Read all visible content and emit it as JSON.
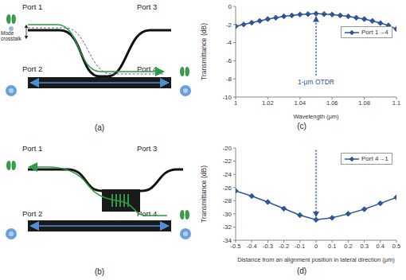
{
  "panel_labels": [
    "(a)",
    "(b)",
    "(c)",
    "(d)"
  ],
  "diagrams": [
    {
      "ports": [
        "Port 1",
        "Port 2",
        "Port 3",
        "Port 4"
      ],
      "annotation": "Mode crosstalk"
    },
    {
      "ports": [
        "Port 1",
        "Port 2",
        "Port 3",
        "Port 4"
      ]
    }
  ],
  "chart_data": [
    {
      "type": "line",
      "x_label": "Wavelength (μm)",
      "y_label": "Transmittance (dB)",
      "x": [
        1.0,
        1.005,
        1.01,
        1.015,
        1.02,
        1.025,
        1.03,
        1.035,
        1.04,
        1.045,
        1.05,
        1.055,
        1.06,
        1.065,
        1.07,
        1.075,
        1.08,
        1.085,
        1.09,
        1.095,
        1.1
      ],
      "series": [
        {
          "name": "Port 1→4",
          "color": "#2e5597",
          "marker": "diamond",
          "line_style": "solid",
          "values": [
            -2.2,
            -2.0,
            -1.8,
            -1.6,
            -1.4,
            -1.25,
            -1.1,
            -1.0,
            -0.9,
            -0.85,
            -0.8,
            -0.85,
            -0.9,
            -1.0,
            -1.1,
            -1.25,
            -1.4,
            -1.6,
            -1.85,
            -2.1,
            -2.5
          ]
        }
      ],
      "xlim": [
        1,
        1.1
      ],
      "xticks": [
        1,
        1.02,
        1.04,
        1.06,
        1.08,
        1.1
      ],
      "ylim": [
        -10,
        0
      ],
      "yticks": [
        -10,
        -8,
        -6,
        -4,
        -2,
        0
      ],
      "grid": false,
      "legend": "right",
      "annotation": {
        "text": "1-μm OTDR",
        "x": 1.05,
        "y": -7.6,
        "arrow_to": -1.1
      }
    },
    {
      "type": "line",
      "x_label": "Distance from an alignment position in lateral direction (μm)",
      "y_label": "Transmittance (dB)",
      "x": [
        -0.5,
        -0.4,
        -0.3,
        -0.2,
        -0.1,
        0,
        0.1,
        0.2,
        0.3,
        0.4,
        0.5
      ],
      "series": [
        {
          "name": "Port 4→1",
          "color": "#2e5597",
          "marker": "diamond",
          "line_style": "solid",
          "values": [
            -26.5,
            -27.3,
            -28.2,
            -29.2,
            -30.2,
            -30.9,
            -30.6,
            -30.0,
            -29.3,
            -28.4,
            -27.5
          ]
        }
      ],
      "xlim": [
        -0.5,
        0.5
      ],
      "xticks": [
        -0.5,
        -0.4,
        -0.3,
        -0.2,
        -0.1,
        0,
        0.1,
        0.2,
        0.3,
        0.4,
        0.5
      ],
      "ylim": [
        -34,
        -20
      ],
      "yticks": [
        -34,
        -32,
        -30,
        -28,
        -26,
        -24,
        -22,
        -20
      ],
      "grid": false,
      "legend": "upper right",
      "annotation": {
        "x": 0,
        "y": -20.3,
        "arrow_to": -30.5
      }
    }
  ]
}
